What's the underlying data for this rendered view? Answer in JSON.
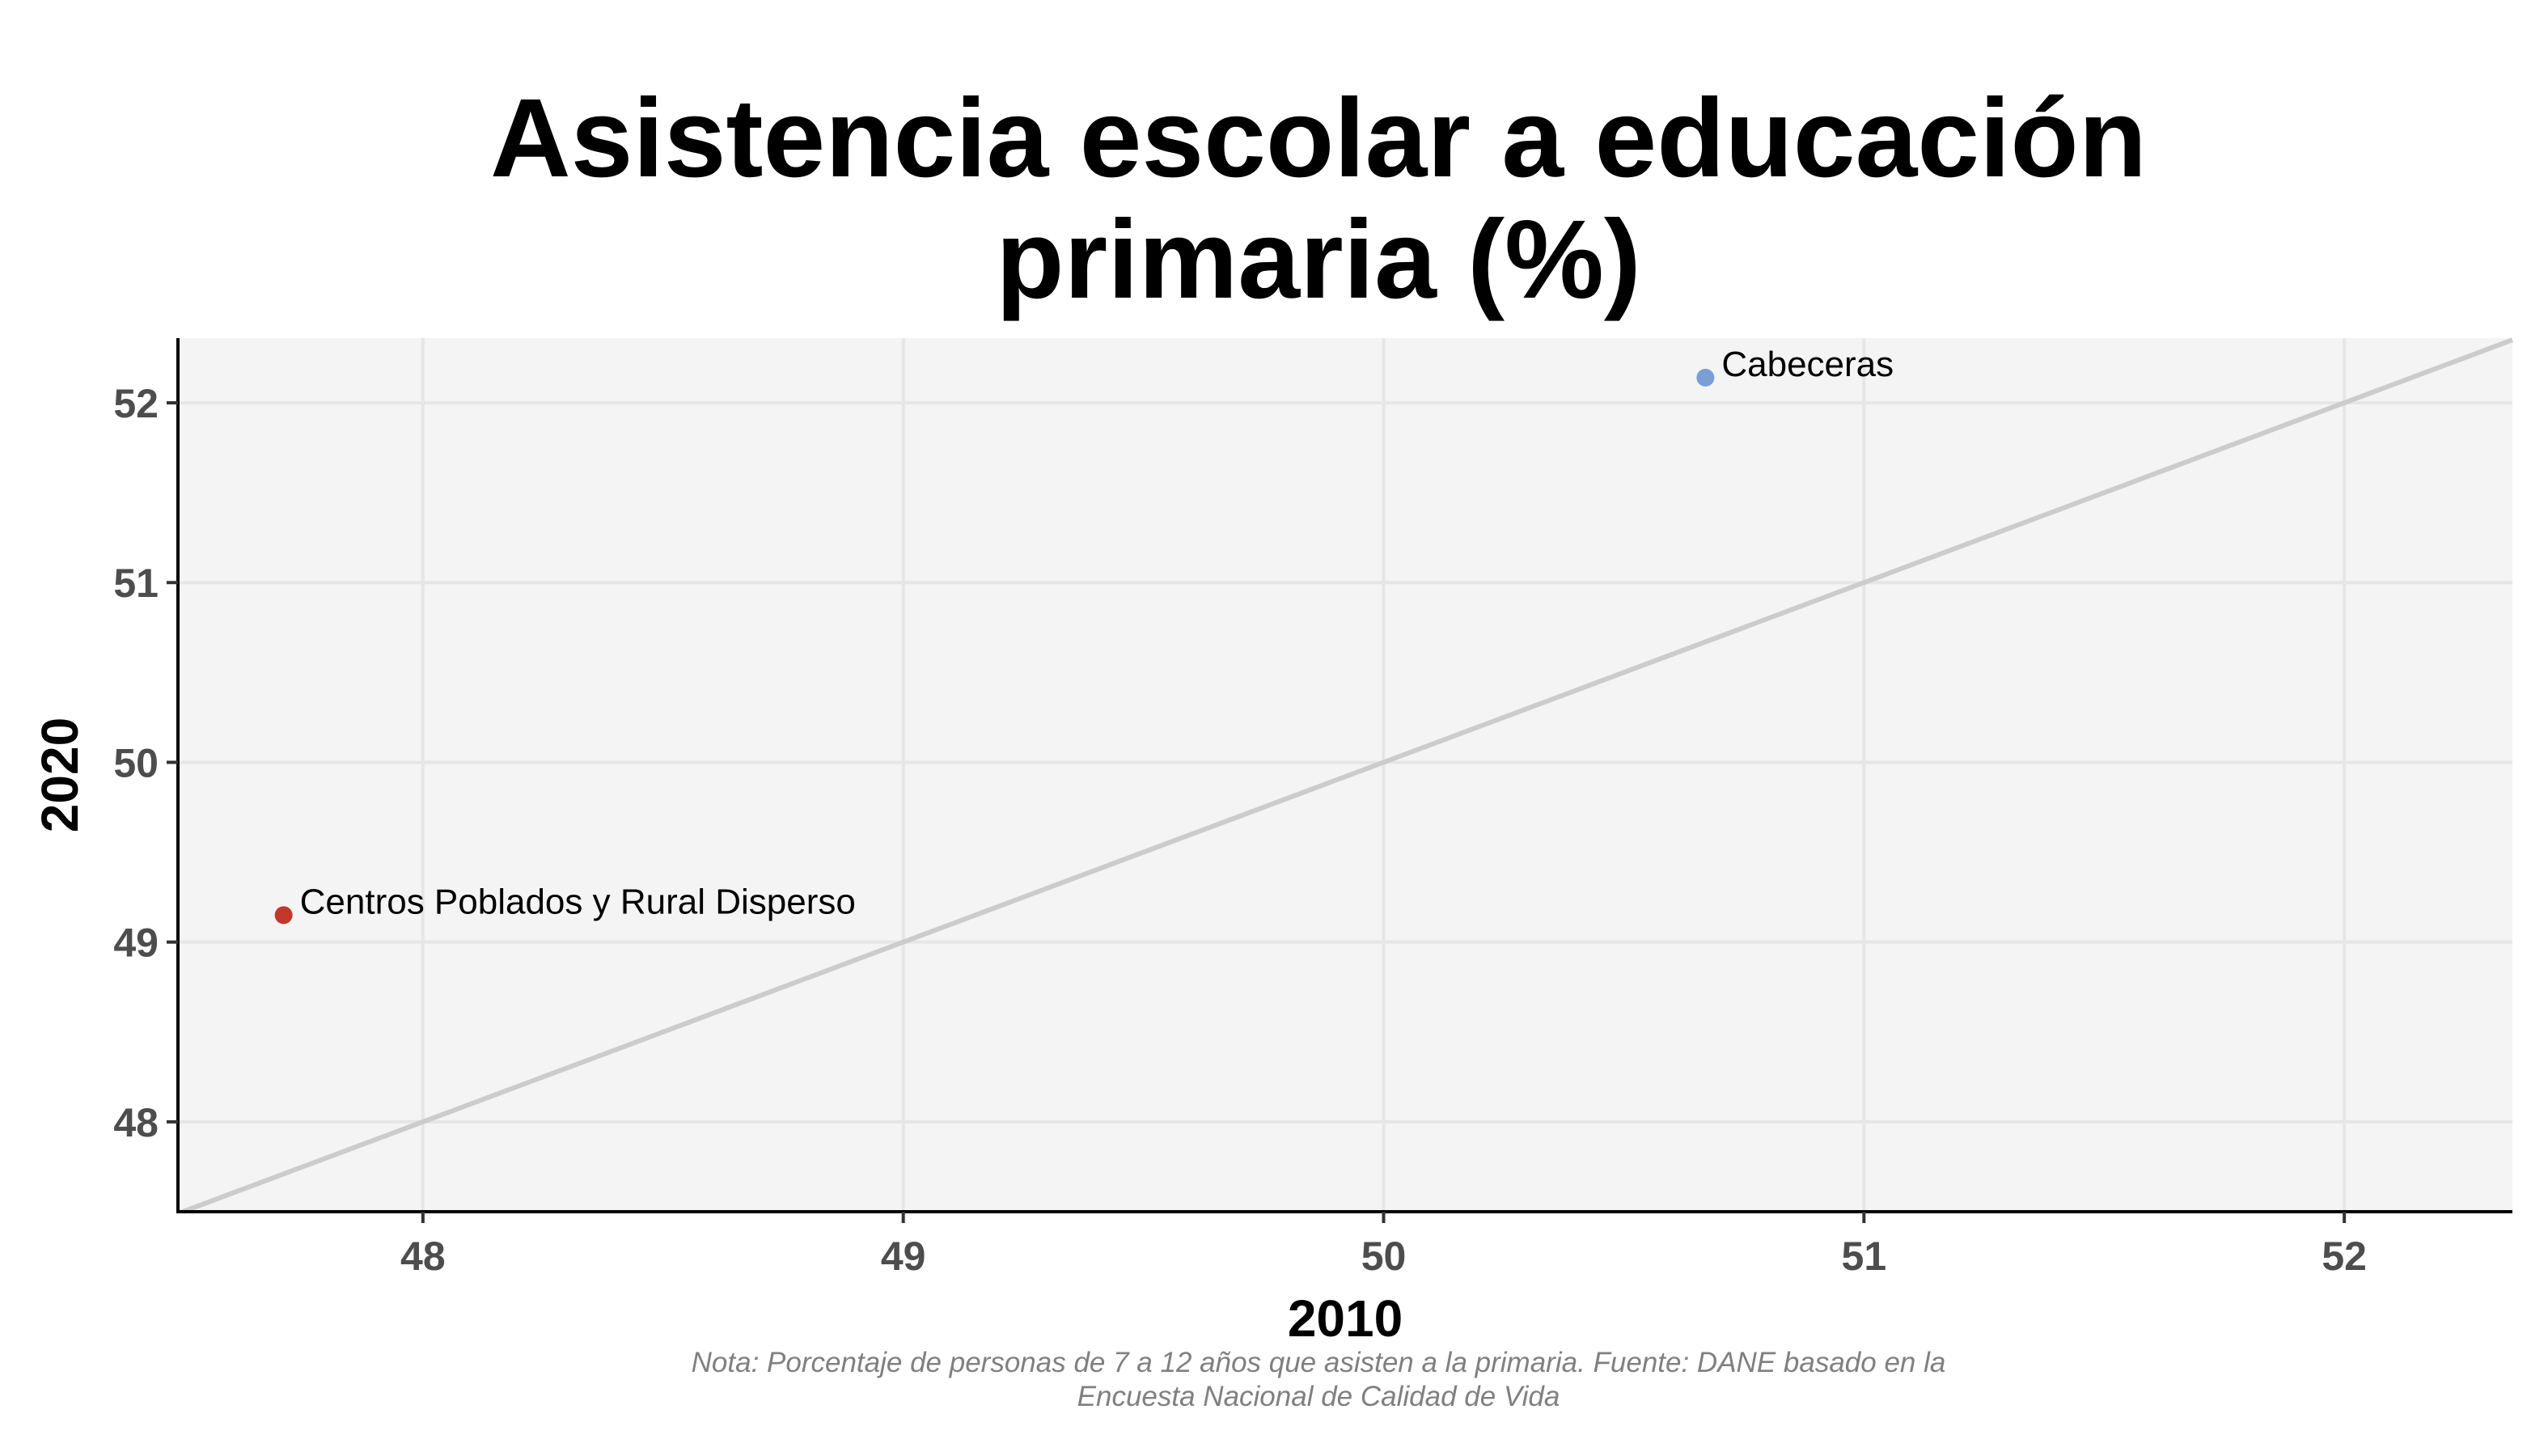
{
  "chart_data": {
    "type": "scatter",
    "title_lines": [
      "Asistencia escolar a educación",
      "primaria (%)"
    ],
    "xlabel": "2010",
    "ylabel": "2020",
    "xlim": [
      47.49,
      52.35
    ],
    "ylim": [
      47.5,
      52.36
    ],
    "x_ticks": [
      48,
      49,
      50,
      51,
      52
    ],
    "y_ticks": [
      48,
      49,
      50,
      51,
      52
    ],
    "grid": true,
    "reference_line": "y = x",
    "points": [
      {
        "label": "Cabeceras",
        "x": 50.67,
        "y": 52.14,
        "color": "#7a9fd6"
      },
      {
        "label": "Centros Poblados y Rural Disperso",
        "x": 47.71,
        "y": 49.15,
        "color": "#c0392b"
      }
    ],
    "note_lines": [
      "Nota: Porcentaje de personas de 7 a 12 años que asisten a la primaria. Fuente: DANE basado en la",
      "Encuesta Nacional de Calidad de Vida"
    ]
  },
  "colors": {
    "panel_background": "#f4f4f4",
    "grid": "#e6e6e6",
    "reference_line": "#cccccc",
    "axis": "#000000"
  }
}
